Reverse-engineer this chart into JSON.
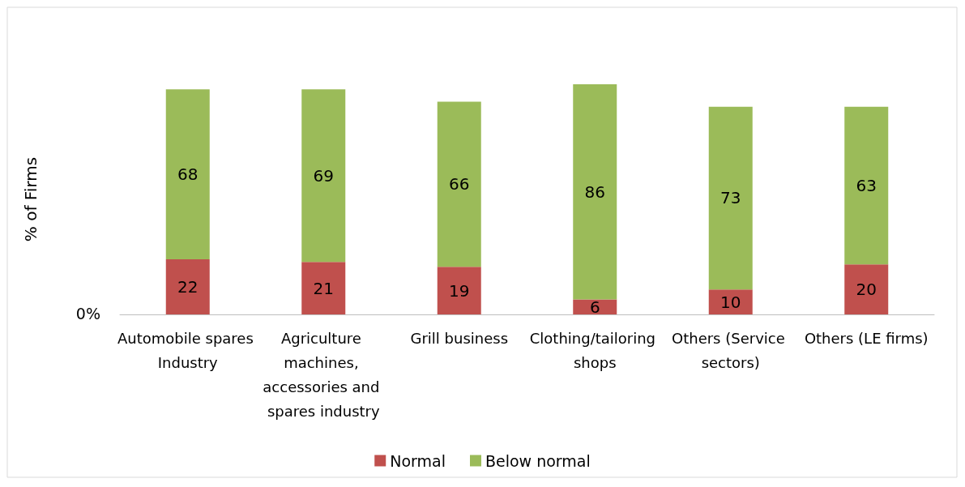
{
  "chart_data": {
    "type": "bar",
    "stacked": true,
    "ylabel": "% of Firms",
    "categories": [
      "Automobile spares Industry",
      "Agriculture machines, accessories and spares industry",
      "Grill business",
      "Clothing/tailoring shops",
      "Others (Service sectors)",
      "Others (LE firms)"
    ],
    "series": [
      {
        "name": "Normal",
        "color": "#c0504d",
        "values": [
          22,
          21,
          19,
          6,
          10,
          20
        ]
      },
      {
        "name": "Below normal",
        "color": "#9bbb59",
        "values": [
          68,
          69,
          66,
          86,
          73,
          63
        ]
      }
    ],
    "annotations": [
      "0%"
    ],
    "data_labels": true,
    "legend": "bottom"
  }
}
